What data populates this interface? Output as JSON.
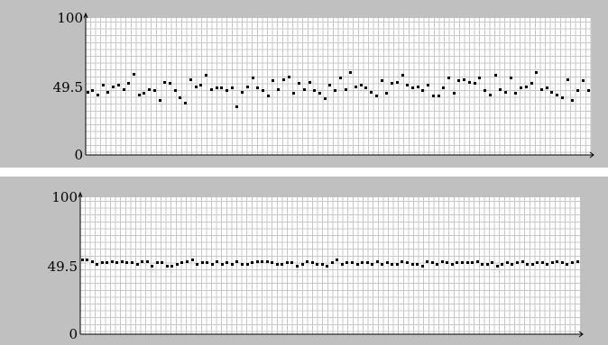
{
  "chart_data": [
    {
      "type": "scatter",
      "title": "",
      "xlabel": "",
      "ylabel": "",
      "ylim": [
        0,
        100
      ],
      "yticks": [
        "100",
        "49.5",
        "0"
      ],
      "grid": true,
      "point_color": "#000000",
      "values": [
        46,
        47,
        44,
        51,
        46,
        50,
        51,
        48,
        52,
        59,
        44,
        45,
        48,
        47,
        40,
        53,
        52,
        47,
        42,
        38,
        55,
        50,
        51,
        58,
        48,
        49,
        49,
        47,
        49,
        35,
        46,
        50,
        56,
        49,
        47,
        43,
        54,
        48,
        55,
        57,
        45,
        52,
        48,
        53,
        47,
        45,
        41,
        51,
        47,
        56,
        48,
        60,
        50,
        51,
        49,
        46,
        43,
        54,
        45,
        52,
        53,
        58,
        51,
        49,
        50,
        47,
        51,
        43,
        43,
        49,
        56,
        45,
        54,
        55,
        53,
        52,
        56,
        47,
        44,
        58,
        48,
        46,
        56,
        45,
        49,
        50,
        52,
        60,
        48,
        49,
        46,
        44,
        42,
        55,
        40,
        47,
        54,
        47
      ]
    },
    {
      "type": "scatter",
      "title": "",
      "xlabel": "",
      "ylabel": "",
      "ylim": [
        0,
        100
      ],
      "yticks": [
        "100",
        "49.5",
        "0"
      ],
      "grid": true,
      "point_color": "#000000",
      "values": [
        54,
        54,
        53,
        51,
        52,
        52,
        53,
        52,
        53,
        52,
        52,
        51,
        53,
        53,
        50,
        52,
        52,
        50,
        50,
        51,
        52,
        53,
        54,
        51,
        52,
        52,
        51,
        53,
        51,
        52,
        51,
        53,
        51,
        51,
        52,
        53,
        53,
        53,
        52,
        51,
        51,
        52,
        52,
        50,
        51,
        53,
        52,
        51,
        51,
        50,
        52,
        54,
        51,
        52,
        52,
        51,
        52,
        52,
        51,
        53,
        51,
        52,
        51,
        51,
        53,
        52,
        51,
        51,
        50,
        53,
        52,
        51,
        53,
        52,
        51,
        52,
        52,
        52,
        52,
        53,
        51,
        51,
        52,
        50,
        51,
        52,
        51,
        52,
        53,
        51,
        51,
        52,
        52,
        51,
        52,
        53,
        52,
        51,
        52,
        53
      ]
    }
  ]
}
